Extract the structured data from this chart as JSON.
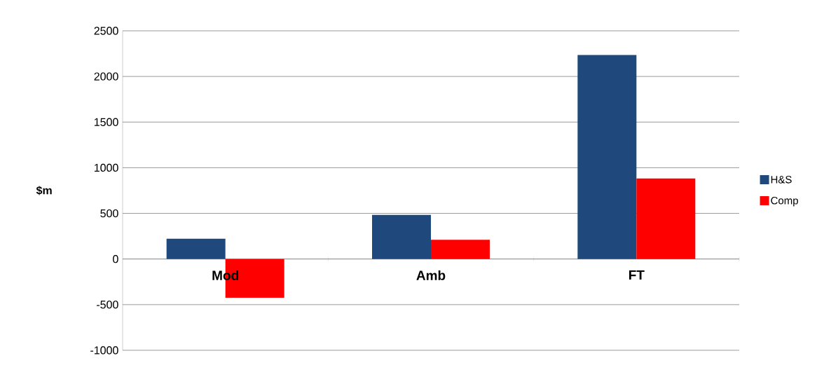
{
  "chart_data": {
    "type": "bar",
    "ylabel": "$m",
    "categories": [
      "Mod",
      "Amb",
      "FT"
    ],
    "series": [
      {
        "name": "H&S",
        "color": "#1f497d",
        "values": [
          223,
          483,
          2235
        ]
      },
      {
        "name": "Comp",
        "color": "#ff0000",
        "values": [
          -424,
          210,
          882
        ]
      }
    ],
    "ylim": [
      -1000,
      2500
    ],
    "yticks": [
      -1000,
      -500,
      0,
      500,
      1000,
      1500,
      2000,
      2500
    ],
    "grid": "y",
    "legend": "right"
  }
}
